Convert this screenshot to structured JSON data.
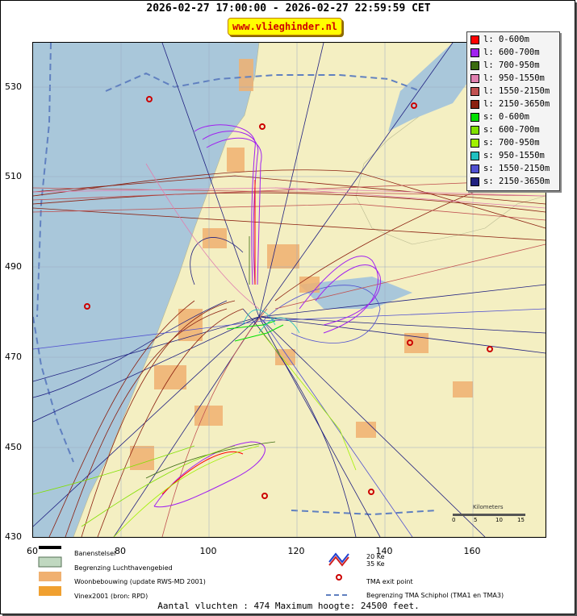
{
  "title": "2026-02-27 17:00:00 - 2026-02-27 22:59:59 CET",
  "site": "www.vlieghinder.nl",
  "axes": {
    "y_ticks": [
      "530",
      "510",
      "490",
      "470",
      "450",
      "430"
    ],
    "x_ticks": [
      "60",
      "80",
      "100",
      "120",
      "140",
      "160"
    ]
  },
  "legend": [
    {
      "label": "l: 0-600m",
      "color": "#ff0000"
    },
    {
      "label": "l: 600-700m",
      "color": "#a020f0"
    },
    {
      "label": "l: 700-950m",
      "color": "#3a6b10"
    },
    {
      "label": "l: 950-1550m",
      "color": "#e080b0"
    },
    {
      "label": "l: 1550-2150m",
      "color": "#c05050"
    },
    {
      "label": "l: 2150-3650m",
      "color": "#8b2010"
    },
    {
      "label": "s: 0-600m",
      "color": "#00e000"
    },
    {
      "label": "s: 600-700m",
      "color": "#80e000"
    },
    {
      "label": "s: 700-950m",
      "color": "#a0f000"
    },
    {
      "label": "s: 950-1550m",
      "color": "#20c0c0"
    },
    {
      "label": "s: 1550-2150m",
      "color": "#5050d0"
    },
    {
      "label": "s: 2150-3650m",
      "color": "#202080"
    }
  ],
  "scale_bar": {
    "title": "Kilometers",
    "labels": [
      "0",
      "5",
      "10",
      "15"
    ]
  },
  "bottom_legend": {
    "runways": "Banenstelsel",
    "airport_limit": "Begrenzing Luchthavengebied",
    "housing": "Woonbebouwing (update RWS-MD 2001)",
    "vinex": "Vinex2001 (bron: RPD)",
    "ke20": "20 Ke",
    "ke35": "35 Ke",
    "tma_exit": "TMA exit point",
    "tma_limit": "Begrenzing TMA Schiphol  (TMA1 en TMA3)"
  },
  "footer": "Aantal vluchten : 474 Maximum hoogte: 24500 feet.",
  "colors": {
    "sea": "#a9c7da",
    "land": "#f5f0c0",
    "urban": "#f0b070",
    "water": "#a9c7da"
  }
}
